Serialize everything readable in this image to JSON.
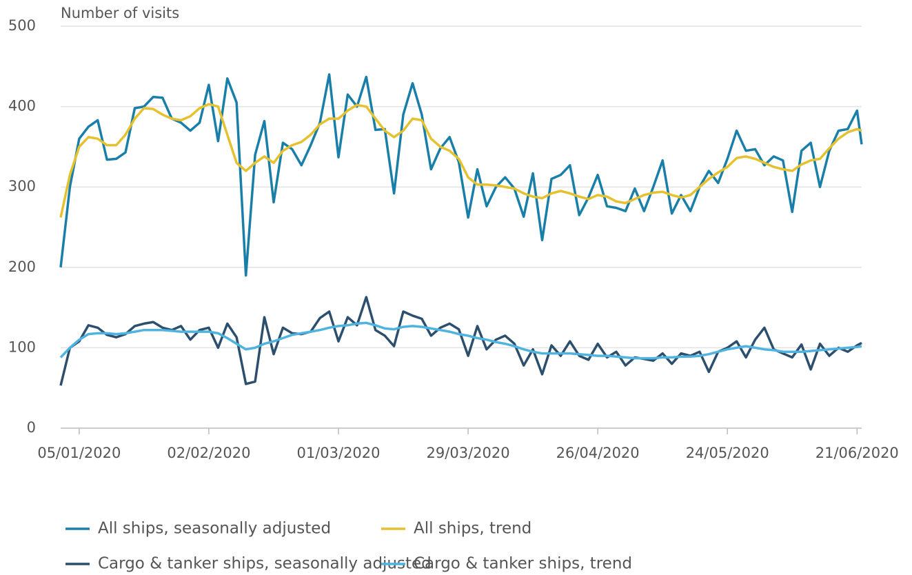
{
  "chart_data": {
    "type": "line",
    "y_label": "Number of visits",
    "x": [
      "01/01/2020",
      "03/01/2020",
      "05/01/2020",
      "07/01/2020",
      "09/01/2020",
      "11/01/2020",
      "13/01/2020",
      "15/01/2020",
      "17/01/2020",
      "19/01/2020",
      "21/01/2020",
      "23/01/2020",
      "25/01/2020",
      "27/01/2020",
      "29/01/2020",
      "31/01/2020",
      "02/02/2020",
      "04/02/2020",
      "06/02/2020",
      "08/02/2020",
      "10/02/2020",
      "12/02/2020",
      "14/02/2020",
      "16/02/2020",
      "18/02/2020",
      "20/02/2020",
      "22/02/2020",
      "24/02/2020",
      "26/02/2020",
      "28/02/2020",
      "01/03/2020",
      "03/03/2020",
      "05/03/2020",
      "07/03/2020",
      "09/03/2020",
      "11/03/2020",
      "13/03/2020",
      "15/03/2020",
      "17/03/2020",
      "19/03/2020",
      "21/03/2020",
      "23/03/2020",
      "25/03/2020",
      "27/03/2020",
      "29/03/2020",
      "31/03/2020",
      "02/04/2020",
      "04/04/2020",
      "06/04/2020",
      "08/04/2020",
      "10/04/2020",
      "12/04/2020",
      "14/04/2020",
      "16/04/2020",
      "18/04/2020",
      "20/04/2020",
      "22/04/2020",
      "24/04/2020",
      "26/04/2020",
      "28/04/2020",
      "30/04/2020",
      "02/05/2020",
      "04/05/2020",
      "06/05/2020",
      "08/05/2020",
      "10/05/2020",
      "12/05/2020",
      "14/05/2020",
      "16/05/2020",
      "18/05/2020",
      "20/05/2020",
      "22/05/2020",
      "24/05/2020",
      "26/05/2020",
      "28/05/2020",
      "30/05/2020",
      "01/06/2020",
      "03/06/2020",
      "05/06/2020",
      "07/06/2020",
      "09/06/2020",
      "11/06/2020",
      "13/06/2020",
      "15/06/2020",
      "17/06/2020",
      "19/06/2020",
      "21/06/2020",
      "22/06/2020"
    ],
    "series": [
      {
        "name": "All ships, seasonally adjusted",
        "color": "#1a7fa8",
        "values": [
          200,
          300,
          360,
          375,
          383,
          334,
          335,
          343,
          398,
          400,
          412,
          411,
          385,
          380,
          370,
          380,
          427,
          357,
          435,
          405,
          190,
          340,
          382,
          281,
          355,
          347,
          327,
          352,
          380,
          440,
          337,
          415,
          400,
          437,
          371,
          372,
          292,
          390,
          429,
          390,
          322,
          348,
          362,
          331,
          262,
          322,
          276,
          300,
          312,
          298,
          263,
          317,
          234,
          310,
          315,
          327,
          265,
          287,
          315,
          276,
          274,
          270,
          298,
          270,
          300,
          333,
          267,
          290,
          270,
          300,
          320,
          305,
          335,
          370,
          345,
          347,
          327,
          338,
          333,
          269,
          345,
          355,
          300,
          345,
          370,
          372,
          395,
          353
        ]
      },
      {
        "name": "All ships, trend",
        "color": "#e6c12f",
        "values": [
          262,
          315,
          350,
          362,
          360,
          352,
          352,
          365,
          385,
          398,
          397,
          390,
          385,
          383,
          388,
          398,
          403,
          400,
          365,
          330,
          320,
          330,
          338,
          330,
          345,
          352,
          356,
          365,
          378,
          385,
          385,
          395,
          402,
          400,
          385,
          370,
          362,
          370,
          385,
          383,
          360,
          350,
          345,
          335,
          312,
          303,
          303,
          302,
          300,
          298,
          292,
          288,
          286,
          292,
          295,
          292,
          288,
          285,
          290,
          288,
          282,
          280,
          285,
          290,
          293,
          294,
          290,
          287,
          290,
          300,
          310,
          318,
          325,
          336,
          338,
          335,
          330,
          325,
          322,
          320,
          328,
          333,
          335,
          348,
          360,
          368,
          372,
          370
        ]
      },
      {
        "name": "Cargo & tanker ships, seasonally adjusted",
        "color": "#2c4f6e",
        "values": [
          53,
          100,
          108,
          128,
          125,
          116,
          113,
          117,
          127,
          130,
          132,
          125,
          122,
          127,
          110,
          122,
          125,
          100,
          130,
          113,
          55,
          58,
          138,
          92,
          125,
          118,
          117,
          120,
          137,
          145,
          108,
          138,
          128,
          163,
          122,
          115,
          102,
          145,
          140,
          136,
          115,
          125,
          130,
          123,
          90,
          127,
          98,
          110,
          115,
          105,
          78,
          98,
          67,
          103,
          90,
          108,
          90,
          85,
          105,
          88,
          95,
          78,
          88,
          86,
          84,
          93,
          80,
          93,
          90,
          95,
          70,
          95,
          100,
          108,
          88,
          110,
          125,
          98,
          93,
          88,
          104,
          73,
          105,
          90,
          100,
          95,
          103,
          106
        ]
      },
      {
        "name": "Cargo & tanker ships, trend",
        "color": "#4fb3e0",
        "values": [
          88,
          100,
          110,
          117,
          118,
          118,
          117,
          118,
          120,
          122,
          122,
          122,
          121,
          120,
          120,
          120,
          120,
          118,
          112,
          105,
          98,
          100,
          105,
          108,
          112,
          116,
          118,
          120,
          122,
          125,
          127,
          128,
          130,
          131,
          128,
          124,
          123,
          126,
          127,
          126,
          124,
          122,
          120,
          117,
          115,
          112,
          110,
          107,
          105,
          102,
          98,
          95,
          93,
          93,
          93,
          93,
          92,
          91,
          90,
          90,
          89,
          88,
          87,
          87,
          87,
          88,
          88,
          89,
          89,
          90,
          92,
          95,
          98,
          100,
          102,
          100,
          98,
          97,
          95,
          95,
          95,
          96,
          97,
          98,
          99,
          100,
          101,
          102
        ]
      }
    ],
    "xlim": [
      "01/01/2020",
      "22/06/2020"
    ],
    "xticks": [
      "05/01/2020",
      "02/02/2020",
      "01/03/2020",
      "29/03/2020",
      "26/04/2020",
      "24/05/2020",
      "21/06/2020"
    ],
    "ylim": [
      0,
      500
    ],
    "yticks": [
      0,
      100,
      200,
      300,
      400,
      500
    ],
    "grid": true,
    "legend": "bottom"
  }
}
